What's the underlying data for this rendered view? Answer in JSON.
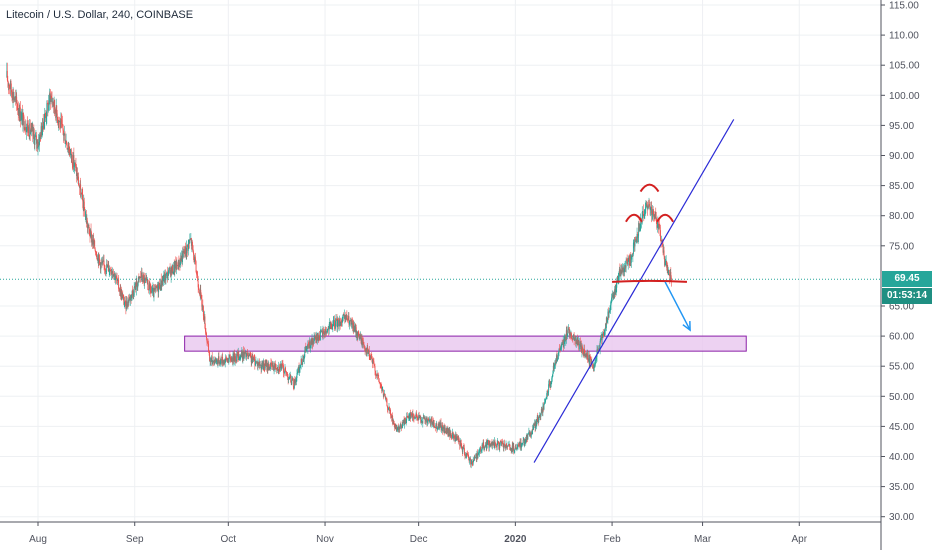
{
  "chart_data": {
    "type": "candlestick",
    "title": "Litecoin / U.S. Dollar, 240, COINBASE",
    "x_ticks": [
      "Aug",
      "Sep",
      "Oct",
      "Nov",
      "Dec",
      "2020",
      "Feb",
      "Mar",
      "Apr"
    ],
    "y_ticks": [
      "115.00",
      "110.00",
      "105.00",
      "100.00",
      "95.00",
      "90.00",
      "85.00",
      "80.00",
      "75.00",
      "65.00",
      "60.00",
      "55.00",
      "50.00",
      "45.00",
      "40.00",
      "35.00",
      "30.00"
    ],
    "ylim": [
      29,
      116
    ],
    "grid": true,
    "current_price": "69.45",
    "countdown": "01:53:14",
    "colors": {
      "up": "#26a69a",
      "down": "#ef5350",
      "price_tag": "#26a69a",
      "countdown_tag": "#1f8f82",
      "zone_fill": "#e8c7ef",
      "zone_stroke": "#8b1fa8",
      "trendline": "#2b2bd6",
      "neckline": "#d32020",
      "arrow": "#2196f3"
    },
    "price_path": [
      [
        "2019-07-22",
        103
      ],
      [
        "2019-07-27",
        96
      ],
      [
        "2019-08-01",
        92
      ],
      [
        "2019-08-05",
        100
      ],
      [
        "2019-08-09",
        94
      ],
      [
        "2019-08-13",
        88
      ],
      [
        "2019-08-17",
        78
      ],
      [
        "2019-08-21",
        72
      ],
      [
        "2019-08-25",
        71
      ],
      [
        "2019-08-29",
        65
      ],
      [
        "2019-09-03",
        70
      ],
      [
        "2019-09-07",
        67
      ],
      [
        "2019-09-11",
        70
      ],
      [
        "2019-09-15",
        72
      ],
      [
        "2019-09-19",
        76
      ],
      [
        "2019-09-23",
        64
      ],
      [
        "2019-09-25",
        56
      ],
      [
        "2019-09-30",
        56
      ],
      [
        "2019-10-06",
        57
      ],
      [
        "2019-10-12",
        55
      ],
      [
        "2019-10-18",
        55
      ],
      [
        "2019-10-22",
        52
      ],
      [
        "2019-10-26",
        58
      ],
      [
        "2019-10-30",
        60
      ],
      [
        "2019-11-04",
        62
      ],
      [
        "2019-11-08",
        63
      ],
      [
        "2019-11-12",
        60
      ],
      [
        "2019-11-16",
        56
      ],
      [
        "2019-11-20",
        50
      ],
      [
        "2019-11-24",
        44
      ],
      [
        "2019-11-28",
        47
      ],
      [
        "2019-12-03",
        46
      ],
      [
        "2019-12-08",
        45
      ],
      [
        "2019-12-13",
        43
      ],
      [
        "2019-12-18",
        39
      ],
      [
        "2019-12-22",
        42
      ],
      [
        "2019-12-27",
        42
      ],
      [
        "2020-01-01",
        41
      ],
      [
        "2020-01-06",
        44
      ],
      [
        "2020-01-10",
        48
      ],
      [
        "2020-01-14",
        56
      ],
      [
        "2020-01-18",
        61
      ],
      [
        "2020-01-22",
        58
      ],
      [
        "2020-01-26",
        55
      ],
      [
        "2020-01-30",
        62
      ],
      [
        "2020-02-03",
        70
      ],
      [
        "2020-02-07",
        73
      ],
      [
        "2020-02-10",
        79
      ],
      [
        "2020-02-13",
        82
      ],
      [
        "2020-02-16",
        78
      ],
      [
        "2020-02-18",
        72
      ],
      [
        "2020-02-20",
        69.45
      ]
    ],
    "annotations": {
      "support_zone": {
        "x_from": "2019-09-17",
        "x_to": "2020-03-15",
        "y_from": 57.5,
        "y_to": 60
      },
      "trendline": {
        "from": [
          "2020-01-07",
          39
        ],
        "to": [
          "2020-03-11",
          96
        ]
      },
      "neckline": {
        "from": [
          "2020-02-01",
          69
        ],
        "to": [
          "2020-02-25",
          69
        ]
      },
      "projection_arrow": {
        "from": [
          "2020-02-18",
          69
        ],
        "to": [
          "2020-02-26",
          61
        ]
      },
      "head_and_shoulders": [
        {
          "part": "left-shoulder",
          "at": [
            "2020-02-08",
            80
          ]
        },
        {
          "part": "head",
          "at": [
            "2020-02-13",
            85
          ]
        },
        {
          "part": "right-shoulder",
          "at": [
            "2020-02-18",
            80
          ]
        }
      ]
    }
  }
}
